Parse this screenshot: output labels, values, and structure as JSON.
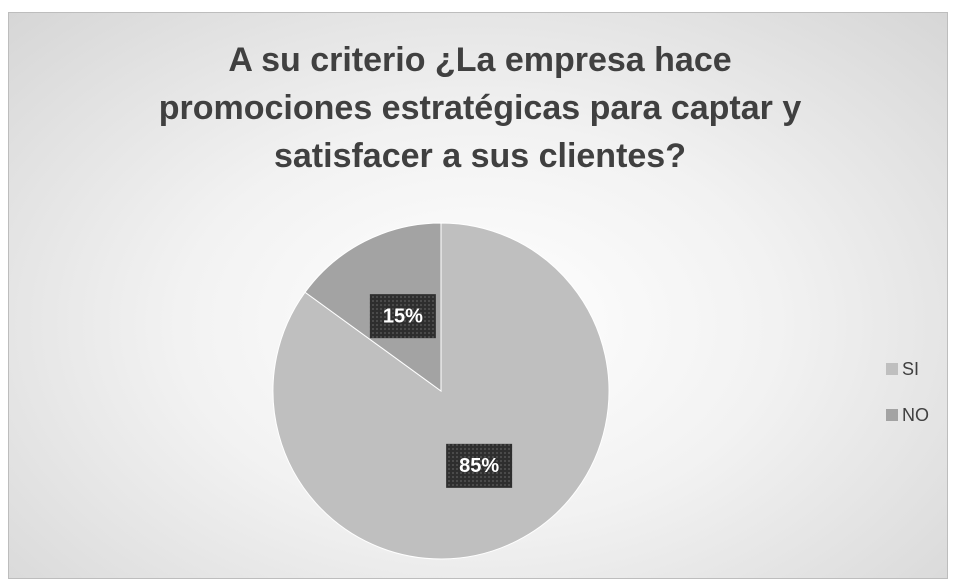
{
  "chart_data": {
    "type": "pie",
    "title": "A su criterio ¿La empresa hace promociones estratégicas para captar y satisfacer a sus clientes?",
    "categories": [
      "SI",
      "NO"
    ],
    "values": [
      85,
      15
    ],
    "value_labels": [
      "85%",
      "15%"
    ],
    "colors": [
      "#bfbfbf",
      "#a3a3a3"
    ],
    "legend": "right"
  }
}
